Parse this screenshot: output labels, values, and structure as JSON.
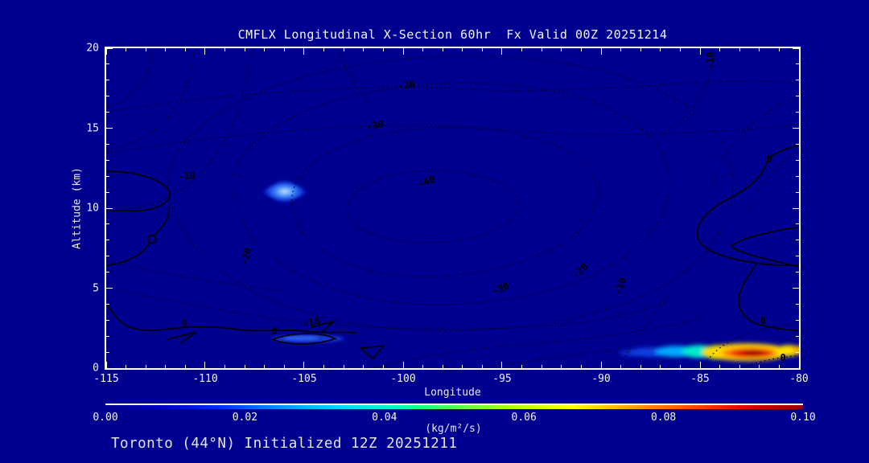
{
  "title": "CMFLX Longitudinal X-Section 60hr  Fx Valid 00Z 20251214",
  "footer": "Toronto (44°N) Initialized 12Z 20251211",
  "colors": {
    "background": "#000090",
    "text": "#f4f4f4",
    "contour": "#000000",
    "frame": "#ffffff"
  },
  "axes": {
    "x": {
      "label": "Longitude",
      "min": -115,
      "max": -80,
      "minor_step": 1,
      "majors": [
        {
          "v": -115,
          "t": "-115"
        },
        {
          "v": -110,
          "t": "-110"
        },
        {
          "v": -105,
          "t": "-105"
        },
        {
          "v": -100,
          "t": "-100"
        },
        {
          "v": -95,
          "t": "-95"
        },
        {
          "v": -90,
          "t": "-90"
        },
        {
          "v": -85,
          "t": "-85"
        },
        {
          "v": -80,
          "t": "-80"
        }
      ]
    },
    "y": {
      "label": "Altitude (km)",
      "min": 0,
      "max": 20,
      "minor_step": 1,
      "majors": [
        {
          "v": 0,
          "t": "0"
        },
        {
          "v": 5,
          "t": "5"
        },
        {
          "v": 10,
          "t": "10"
        },
        {
          "v": 15,
          "t": "15"
        },
        {
          "v": 20,
          "t": "20"
        }
      ]
    }
  },
  "colorbar": {
    "min": 0.0,
    "max": 0.1,
    "units": "(kg/m²/s)",
    "ticks": [
      {
        "v": 0.0,
        "t": "0.00"
      },
      {
        "v": 0.02,
        "t": "0.02"
      },
      {
        "v": 0.04,
        "t": "0.04"
      },
      {
        "v": 0.06,
        "t": "0.06"
      },
      {
        "v": 0.08,
        "t": "0.08"
      },
      {
        "v": 0.1,
        "t": "0.10"
      }
    ],
    "gradient": [
      "#000090",
      "#0000c8",
      "#0030ff",
      "#0090ff",
      "#00d8ff",
      "#00ffc0",
      "#50ff50",
      "#b0ff00",
      "#ffff00",
      "#ffa800",
      "#ff5000",
      "#e00000",
      "#960000"
    ]
  },
  "contour_labels": [
    {
      "t": "-20",
      "fx": 0.4335,
      "fy": 0.1144,
      "r": -8
    },
    {
      "t": "-30",
      "fx": 0.3884,
      "fy": 0.2413,
      "r": -10
    },
    {
      "t": "-10",
      "fx": 0.1156,
      "fy": 0.4005,
      "r": -5
    },
    {
      "t": "-40",
      "fx": 0.4624,
      "fy": 0.4179,
      "r": -20
    },
    {
      "t": "-20",
      "fx": 0.2023,
      "fy": 0.6517,
      "r": -75
    },
    {
      "t": "-30",
      "fx": 0.5688,
      "fy": 0.7512,
      "r": -20
    },
    {
      "t": "-20",
      "fx": 0.6844,
      "fy": 0.6965,
      "r": -45
    },
    {
      "t": "-10",
      "fx": 0.7422,
      "fy": 0.7438,
      "r": -70
    },
    {
      "t": "-10",
      "fx": 0.8728,
      "fy": 0.0373,
      "r": -90
    },
    {
      "t": "-10",
      "fx": 0.296,
      "fy": 0.8557,
      "r": -15
    },
    {
      "t": "0",
      "fx": 0.1133,
      "fy": 0.8607,
      "r": 0
    },
    {
      "t": "0",
      "fx": 0.2428,
      "fy": 0.8856,
      "r": 0
    },
    {
      "t": "0",
      "fx": 0.9572,
      "fy": 0.3458,
      "r": 0
    },
    {
      "t": "0",
      "fx": 0.948,
      "fy": 0.8507,
      "r": 0
    },
    {
      "t": "0",
      "fx": 0.9769,
      "fy": 0.9677,
      "r": 0
    }
  ],
  "chart_data": {
    "type": "contour",
    "title": "CMFLX Longitudinal X-Section 60hr  Fx Valid 00Z 20251214",
    "xlabel": "Longitude",
    "ylabel": "Altitude (km)",
    "xlim": [
      -115,
      -80
    ],
    "ylim": [
      0,
      20
    ],
    "grid": false,
    "contour_line_levels": [
      -40,
      -30,
      -20,
      -10,
      0
    ],
    "contour_line_style": "negative levels dotted black, zero level solid black",
    "contour_minimum_center": {
      "lon": -99,
      "alt_km": 10,
      "innermost_label": -40
    },
    "zero_contours": [
      {
        "location": "left edge, 10.5-12 km closed loop"
      },
      {
        "location": "near-surface wavy line 1.5-2.5 km from -115 to -102"
      },
      {
        "location": "right side large lobe -86.5 to -80, 3-14 km"
      },
      {
        "location": "small closed triangle near -96.7, 1.3 km"
      }
    ],
    "filled_field": {
      "name": "convective mass flux",
      "units": "kg/m²/s",
      "scale_min": 0.0,
      "scale_max": 0.1,
      "colormap": "blue-cyan-green-yellow-red rainbow over navy background",
      "maxima": [
        {
          "lon": -106.0,
          "alt_km": 11.0,
          "approx_value": 0.03,
          "shape": "small diamond glow"
        },
        {
          "lon": -103.8,
          "alt_km": 1.7,
          "approx_value": 0.015,
          "shape": "faint thin streak"
        },
        {
          "lon": -83.3,
          "alt_km": 1.0,
          "approx_value": 0.1,
          "shape": "intense low-level streak, red core, yellow to right edge"
        }
      ]
    },
    "annotations": [
      "Toronto (44°N) Initialized 12Z 20251211"
    ]
  }
}
